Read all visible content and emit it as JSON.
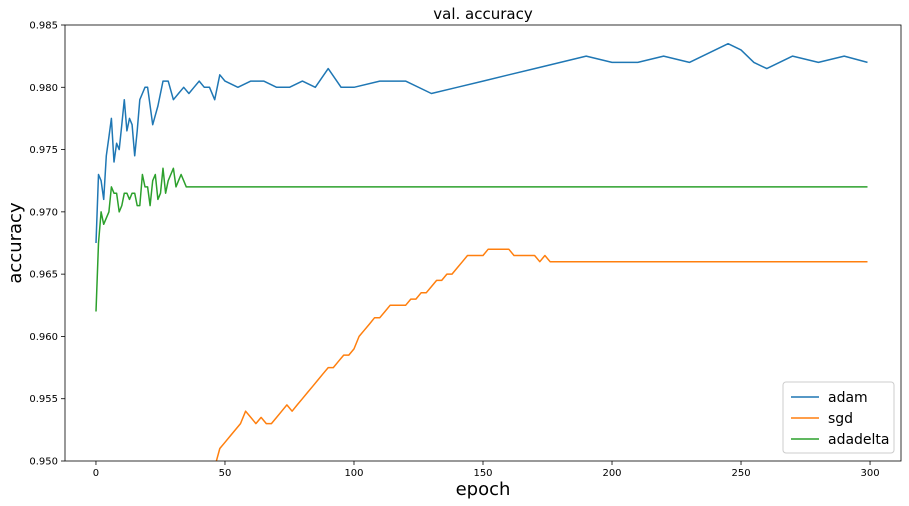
{
  "chart_data": {
    "type": "line",
    "title": "val. accuracy",
    "xlabel": "epoch",
    "ylabel": "accuracy",
    "xlim": [
      -12,
      312
    ],
    "ylim": [
      0.95,
      0.985
    ],
    "xticks": [
      0,
      50,
      100,
      150,
      200,
      250,
      300
    ],
    "yticks": [
      0.95,
      0.955,
      0.96,
      0.965,
      0.97,
      0.975,
      0.98,
      0.985
    ],
    "ytick_labels": [
      "0.950",
      "0.955",
      "0.960",
      "0.965",
      "0.970",
      "0.975",
      "0.980",
      "0.985"
    ],
    "grid": false,
    "legend_position": "lower-right",
    "series": [
      {
        "name": "adam",
        "color": "#1f77b4",
        "x": [
          0,
          1,
          2,
          3,
          4,
          5,
          6,
          7,
          8,
          9,
          10,
          11,
          12,
          13,
          14,
          15,
          16,
          17,
          18,
          19,
          20,
          22,
          24,
          26,
          28,
          30,
          32,
          34,
          36,
          38,
          40,
          42,
          44,
          46,
          48,
          50,
          55,
          60,
          65,
          70,
          75,
          80,
          85,
          90,
          95,
          100,
          110,
          120,
          130,
          140,
          150,
          160,
          170,
          180,
          190,
          200,
          210,
          220,
          230,
          240,
          245,
          250,
          255,
          260,
          270,
          280,
          290,
          299
        ],
        "y": [
          0.9675,
          0.973,
          0.9725,
          0.971,
          0.9745,
          0.976,
          0.9775,
          0.974,
          0.9755,
          0.975,
          0.977,
          0.979,
          0.9765,
          0.9775,
          0.977,
          0.9745,
          0.9765,
          0.979,
          0.9795,
          0.98,
          0.98,
          0.977,
          0.9785,
          0.9805,
          0.9805,
          0.979,
          0.9795,
          0.98,
          0.9795,
          0.98,
          0.9805,
          0.98,
          0.98,
          0.979,
          0.981,
          0.9805,
          0.98,
          0.9805,
          0.9805,
          0.98,
          0.98,
          0.9805,
          0.98,
          0.9815,
          0.98,
          0.98,
          0.9805,
          0.9805,
          0.9795,
          0.98,
          0.9805,
          0.981,
          0.9815,
          0.982,
          0.9825,
          0.982,
          0.982,
          0.9825,
          0.982,
          0.983,
          0.9835,
          0.983,
          0.982,
          0.9815,
          0.9825,
          0.982,
          0.9825,
          0.982
        ]
      },
      {
        "name": "sgd",
        "color": "#ff7f0e",
        "x": [
          46,
          48,
          50,
          52,
          54,
          56,
          58,
          60,
          62,
          64,
          66,
          68,
          70,
          72,
          74,
          76,
          78,
          80,
          82,
          84,
          86,
          88,
          90,
          92,
          94,
          96,
          98,
          100,
          102,
          104,
          106,
          108,
          110,
          112,
          114,
          116,
          118,
          120,
          122,
          124,
          126,
          128,
          130,
          132,
          134,
          136,
          138,
          140,
          142,
          144,
          146,
          148,
          150,
          152,
          154,
          156,
          158,
          160,
          162,
          164,
          166,
          168,
          170,
          172,
          174,
          176,
          178,
          180,
          200,
          250,
          299
        ],
        "y": [
          0.9495,
          0.951,
          0.9515,
          0.952,
          0.9525,
          0.953,
          0.954,
          0.9535,
          0.953,
          0.9535,
          0.953,
          0.953,
          0.9535,
          0.954,
          0.9545,
          0.954,
          0.9545,
          0.955,
          0.9555,
          0.956,
          0.9565,
          0.957,
          0.9575,
          0.9575,
          0.958,
          0.9585,
          0.9585,
          0.959,
          0.96,
          0.9605,
          0.961,
          0.9615,
          0.9615,
          0.962,
          0.9625,
          0.9625,
          0.9625,
          0.9625,
          0.963,
          0.963,
          0.9635,
          0.9635,
          0.964,
          0.9645,
          0.9645,
          0.965,
          0.965,
          0.9655,
          0.966,
          0.9665,
          0.9665,
          0.9665,
          0.9665,
          0.967,
          0.967,
          0.967,
          0.967,
          0.967,
          0.9665,
          0.9665,
          0.9665,
          0.9665,
          0.9665,
          0.966,
          0.9665,
          0.966,
          0.966,
          0.966,
          0.966,
          0.966,
          0.966
        ]
      },
      {
        "name": "adadelta",
        "color": "#2ca02c",
        "x": [
          0,
          1,
          2,
          3,
          4,
          5,
          6,
          7,
          8,
          9,
          10,
          11,
          12,
          13,
          14,
          15,
          16,
          17,
          18,
          19,
          20,
          21,
          22,
          23,
          24,
          25,
          26,
          27,
          28,
          29,
          30,
          31,
          32,
          33,
          34,
          35,
          40,
          60,
          100,
          150,
          200,
          250,
          299
        ],
        "y": [
          0.962,
          0.9675,
          0.97,
          0.969,
          0.9695,
          0.97,
          0.972,
          0.9715,
          0.9715,
          0.97,
          0.9705,
          0.9715,
          0.9715,
          0.971,
          0.9715,
          0.9715,
          0.9705,
          0.9705,
          0.973,
          0.972,
          0.972,
          0.9705,
          0.9725,
          0.973,
          0.971,
          0.9715,
          0.9735,
          0.9715,
          0.9725,
          0.973,
          0.9735,
          0.972,
          0.9725,
          0.973,
          0.9725,
          0.972,
          0.972,
          0.972,
          0.972,
          0.972,
          0.972,
          0.972,
          0.972
        ]
      }
    ]
  }
}
